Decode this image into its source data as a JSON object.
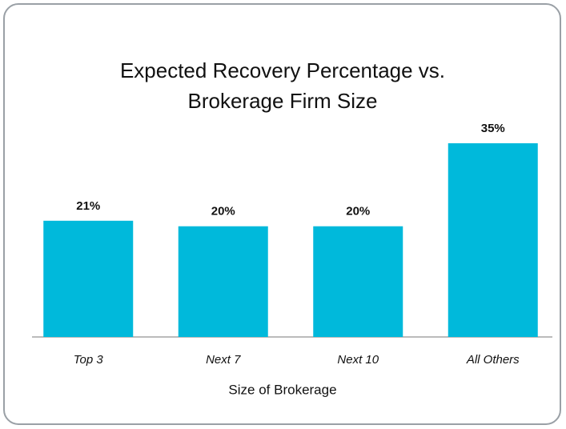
{
  "chart_data": {
    "type": "bar",
    "title": [
      "Expected Recovery Percentage vs.",
      "Brokerage Firm Size"
    ],
    "x_label": "Size of Brokerage",
    "categories": [
      "Top 3",
      "Next 7",
      "Next 10",
      "All Others"
    ],
    "values": [
      21,
      20,
      20,
      35
    ],
    "value_labels": [
      "21%",
      "20%",
      "20%",
      "35%"
    ],
    "color": "#00b9db"
  }
}
